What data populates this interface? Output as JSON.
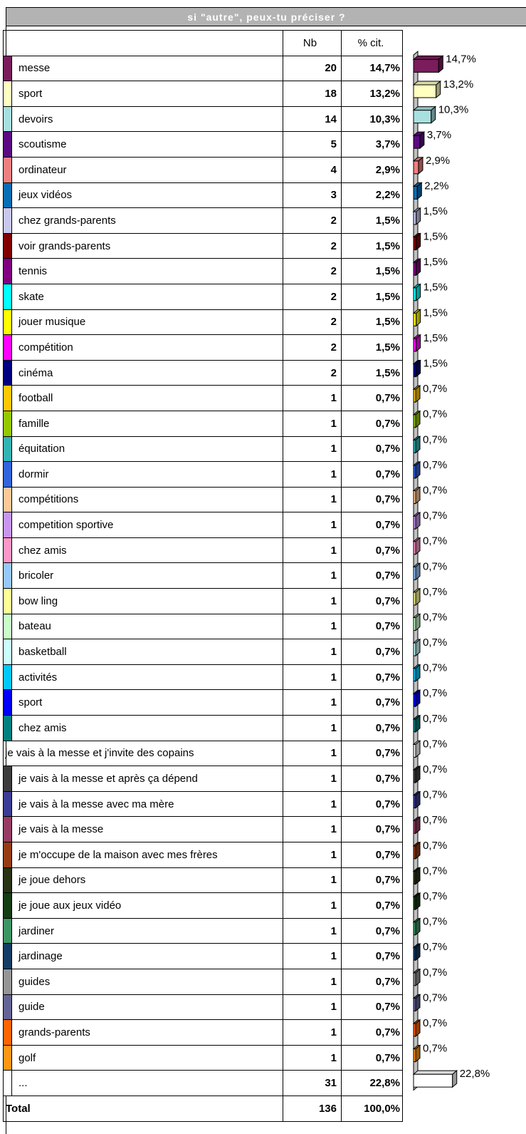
{
  "title": "si \"autre\", peux-tu préciser ?",
  "headers": {
    "nb": "Nb",
    "pct": "% cit."
  },
  "chart_data": {
    "type": "bar",
    "orientation": "horizontal",
    "title": "si \"autre\", peux-tu préciser ?",
    "categories": [
      "messe",
      "sport",
      "devoirs",
      "scoutisme",
      "ordinateur",
      "jeux vidéos",
      "chez grands-parents",
      "voir grands-parents",
      "tennis",
      "skate",
      "jouer musique",
      "compétition",
      "cinéma",
      "football",
      "famille",
      "équitation",
      "dormir",
      "compétitions",
      "competition sportive",
      "chez amis",
      "bricoler",
      "bow ling",
      "bateau",
      "basketball",
      "activités",
      " sport",
      " chez amis",
      "je vais à la messe et j'invite des copains",
      "je vais à la messe et après ça dépend",
      "je vais à la messe avec ma mère",
      "je vais à la messe",
      "je m'occupe de la maison avec mes frères",
      "je joue dehors",
      "je joue aux jeux vidéo",
      "jardiner",
      "jardinage",
      "guides",
      "guide",
      "grands-parents",
      "golf",
      "..."
    ],
    "counts": [
      20,
      18,
      14,
      5,
      4,
      3,
      2,
      2,
      2,
      2,
      2,
      2,
      2,
      1,
      1,
      1,
      1,
      1,
      1,
      1,
      1,
      1,
      1,
      1,
      1,
      1,
      1,
      1,
      1,
      1,
      1,
      1,
      1,
      1,
      1,
      1,
      1,
      1,
      1,
      1,
      31
    ],
    "values": [
      14.7,
      13.2,
      10.3,
      3.7,
      2.9,
      2.2,
      1.5,
      1.5,
      1.5,
      1.5,
      1.5,
      1.5,
      1.5,
      0.7,
      0.7,
      0.7,
      0.7,
      0.7,
      0.7,
      0.7,
      0.7,
      0.7,
      0.7,
      0.7,
      0.7,
      0.7,
      0.7,
      0.7,
      0.7,
      0.7,
      0.7,
      0.7,
      0.7,
      0.7,
      0.7,
      0.7,
      0.7,
      0.7,
      0.7,
      0.7,
      22.8
    ],
    "value_labels": [
      "14,7%",
      "13,2%",
      "10,3%",
      "3,7%",
      "2,9%",
      "2,2%",
      "1,5%",
      "1,5%",
      "1,5%",
      "1,5%",
      "1,5%",
      "1,5%",
      "1,5%",
      "0,7%",
      "0,7%",
      "0,7%",
      "0,7%",
      "0,7%",
      "0,7%",
      "0,7%",
      "0,7%",
      "0,7%",
      "0,7%",
      "0,7%",
      "0,7%",
      "0,7%",
      "0,7%",
      "0,7%",
      "0,7%",
      "0,7%",
      "0,7%",
      "0,7%",
      "0,7%",
      "0,7%",
      "0,7%",
      "0,7%",
      "0,7%",
      "0,7%",
      "0,7%",
      "0,7%",
      "22,8%"
    ],
    "colors": [
      "#7b1c5c",
      "#ffffc0",
      "#a8e0e0",
      "#5c0a82",
      "#f08080",
      "#0a6eb4",
      "#c8c8f0",
      "#800000",
      "#800080",
      "#00ffff",
      "#ffff00",
      "#ff00ff",
      "#000080",
      "#ffc800",
      "#96c800",
      "#32b4b4",
      "#3264dc",
      "#ffc896",
      "#c896f0",
      "#ff96c8",
      "#96c8ff",
      "#ffff96",
      "#c8ffc8",
      "#c8ffff",
      "#00c8ff",
      "#0000ff",
      "#008080",
      "#ffffff",
      "#3c3c3c",
      "#3c3c96",
      "#963c64",
      "#963c14",
      "#283214",
      "#143c14",
      "#3c9664",
      "#143c64",
      "#969696",
      "#646496",
      "#ff6400",
      "#ff9614",
      "#ffffff"
    ],
    "unit": "%"
  },
  "total": {
    "label": "Total",
    "nb": "136",
    "pct": "100,0%"
  }
}
